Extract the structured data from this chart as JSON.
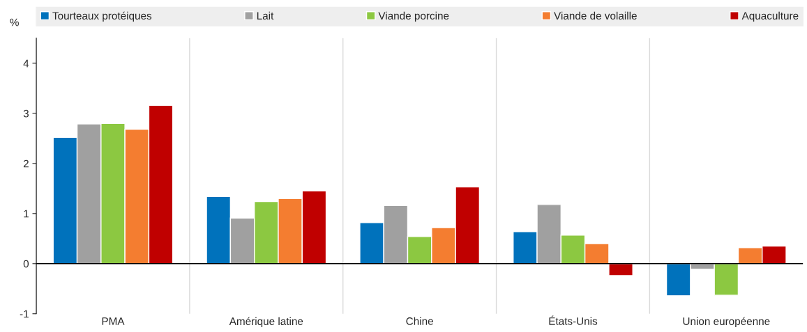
{
  "chart_data": {
    "type": "bar",
    "ylabel": "%",
    "categories": [
      "PMA",
      "Amérique latine",
      "Chine",
      "États-Unis",
      "Union européenne"
    ],
    "series": [
      {
        "name": "Tourteaux protéiques",
        "color": "#0072bc",
        "values": [
          2.52,
          1.34,
          0.82,
          0.64,
          -0.64
        ]
      },
      {
        "name": "Lait",
        "color": "#a0a0a0",
        "values": [
          2.79,
          0.91,
          1.16,
          1.18,
          -0.11
        ]
      },
      {
        "name": "Viande porcine",
        "color": "#8cc841",
        "values": [
          2.8,
          1.24,
          0.54,
          0.57,
          -0.63
        ]
      },
      {
        "name": "Viande de volaille",
        "color": "#f47d30",
        "values": [
          2.68,
          1.3,
          0.72,
          0.4,
          0.32
        ]
      },
      {
        "name": "Aquaculture",
        "color": "#c00000",
        "values": [
          3.16,
          1.45,
          1.53,
          -0.24,
          0.35
        ]
      }
    ],
    "ylim": [
      -1,
      4.5
    ],
    "yticks": [
      -1,
      0,
      1,
      2,
      3,
      4
    ],
    "grid": "x",
    "legend": "top"
  }
}
